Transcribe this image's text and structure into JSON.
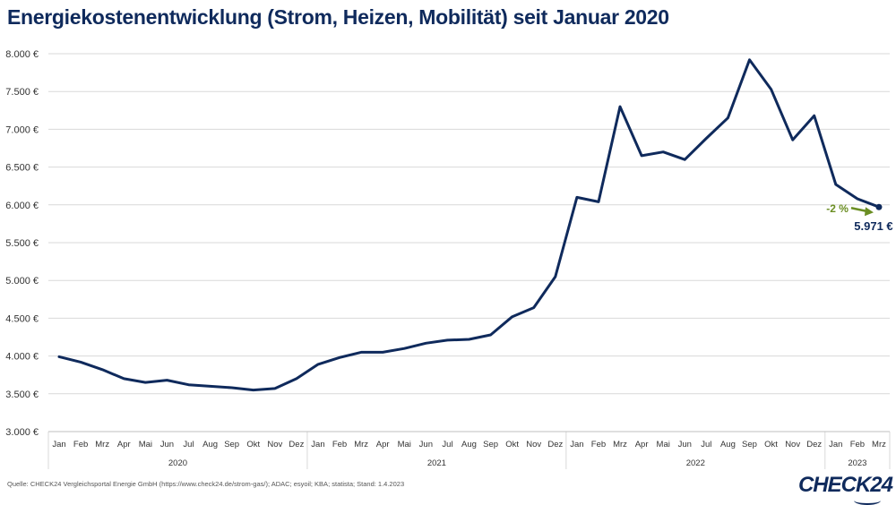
{
  "title": "Energiekostenentwicklung (Strom, Heizen, Mobilität) seit Januar 2020",
  "source": "Quelle: CHECK24 Vergleichsportal Energie GmbH (https://www.check24.de/strom-gas/); ADAC; esyoil; KBA; statista; Stand: 1.4.2023",
  "logo": "CHECK24",
  "colors": {
    "line": "#0f2a5c",
    "arrow": "#6b8e23",
    "grid": "#d9d9d9"
  },
  "chart_data": {
    "type": "line",
    "title": "Energiekostenentwicklung (Strom, Heizen, Mobilität) seit Januar 2020",
    "ylim": [
      3000,
      8000
    ],
    "yticks": [
      3000,
      3500,
      4000,
      4500,
      5000,
      5500,
      6000,
      6500,
      7000,
      7500,
      8000
    ],
    "ytick_labels": [
      "3.000 €",
      "3.500 €",
      "4.000 €",
      "4.500 €",
      "5.000 €",
      "5.500 €",
      "6.000 €",
      "6.500 €",
      "7.000 €",
      "7.500 €",
      "8.000 €"
    ],
    "grid": true,
    "categories": [
      "Jan",
      "Feb",
      "Mrz",
      "Apr",
      "Mai",
      "Jun",
      "Jul",
      "Aug",
      "Sep",
      "Okt",
      "Nov",
      "Dez",
      "Jan",
      "Feb",
      "Mrz",
      "Apr",
      "Mai",
      "Jun",
      "Jul",
      "Aug",
      "Sep",
      "Okt",
      "Nov",
      "Dez",
      "Jan",
      "Feb",
      "Mrz",
      "Apr",
      "Mai",
      "Jun",
      "Jul",
      "Aug",
      "Sep",
      "Okt",
      "Nov",
      "Dez",
      "Jan",
      "Feb",
      "Mrz"
    ],
    "years": [
      {
        "label": "2020",
        "months": 12
      },
      {
        "label": "2021",
        "months": 12
      },
      {
        "label": "2022",
        "months": 12
      },
      {
        "label": "2023",
        "months": 3
      }
    ],
    "values": [
      3990,
      3920,
      3820,
      3700,
      3650,
      3680,
      3620,
      3600,
      3580,
      3550,
      3570,
      3700,
      3890,
      3980,
      4050,
      4050,
      4100,
      4170,
      4210,
      4220,
      4280,
      4520,
      4640,
      5050,
      6100,
      6040,
      7300,
      6650,
      6700,
      6600,
      6880,
      7150,
      7920,
      7530,
      6860,
      7180,
      6270,
      6080,
      5971
    ],
    "annotations": [
      {
        "text": "-2 %",
        "type": "change"
      },
      {
        "text": "5.971 €",
        "type": "last-value"
      }
    ]
  }
}
